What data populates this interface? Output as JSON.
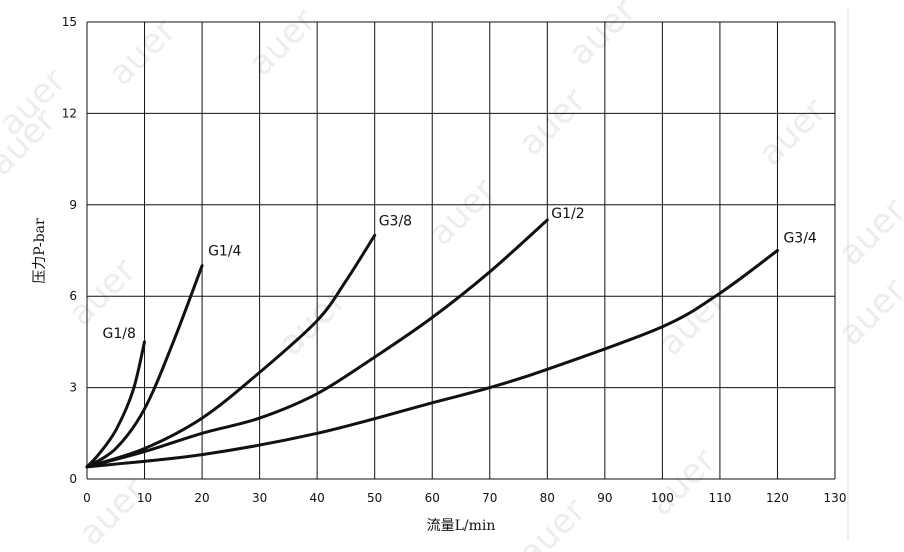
{
  "watermark": "auer",
  "chart_data": {
    "type": "line",
    "xlabel": "流量L/min",
    "ylabel": "压力P-bar",
    "xlim": [
      0,
      130
    ],
    "ylim": [
      0,
      15
    ],
    "x_ticks": [
      "0",
      "10",
      "20",
      "30",
      "40",
      "50",
      "60",
      "70",
      "80",
      "90",
      "100",
      "110",
      "120",
      "130"
    ],
    "y_ticks": [
      "0",
      "3",
      "6",
      "9",
      "12",
      "15"
    ],
    "grid": true,
    "series": [
      {
        "name": "G1/8",
        "x": [
          0,
          2,
          5,
          8,
          10
        ],
        "y": [
          0.4,
          0.8,
          1.6,
          2.9,
          4.5
        ]
      },
      {
        "name": "G1/4",
        "x": [
          0,
          5,
          10,
          15,
          20
        ],
        "y": [
          0.4,
          1.0,
          2.3,
          4.5,
          7.0
        ]
      },
      {
        "name": "G3/8",
        "x": [
          0,
          10,
          20,
          30,
          40,
          45,
          50
        ],
        "y": [
          0.4,
          1.0,
          2.0,
          3.5,
          5.2,
          6.5,
          8.0
        ]
      },
      {
        "name": "G1/2",
        "x": [
          0,
          10,
          20,
          30,
          40,
          50,
          60,
          70,
          80
        ],
        "y": [
          0.4,
          0.9,
          1.5,
          2.0,
          2.8,
          4.0,
          5.3,
          6.8,
          8.5
        ]
      },
      {
        "name": "G3/4",
        "x": [
          0,
          20,
          40,
          60,
          70,
          80,
          100,
          110,
          120
        ],
        "y": [
          0.4,
          0.8,
          1.5,
          2.5,
          3.0,
          3.6,
          5.0,
          6.1,
          7.5
        ]
      }
    ]
  }
}
